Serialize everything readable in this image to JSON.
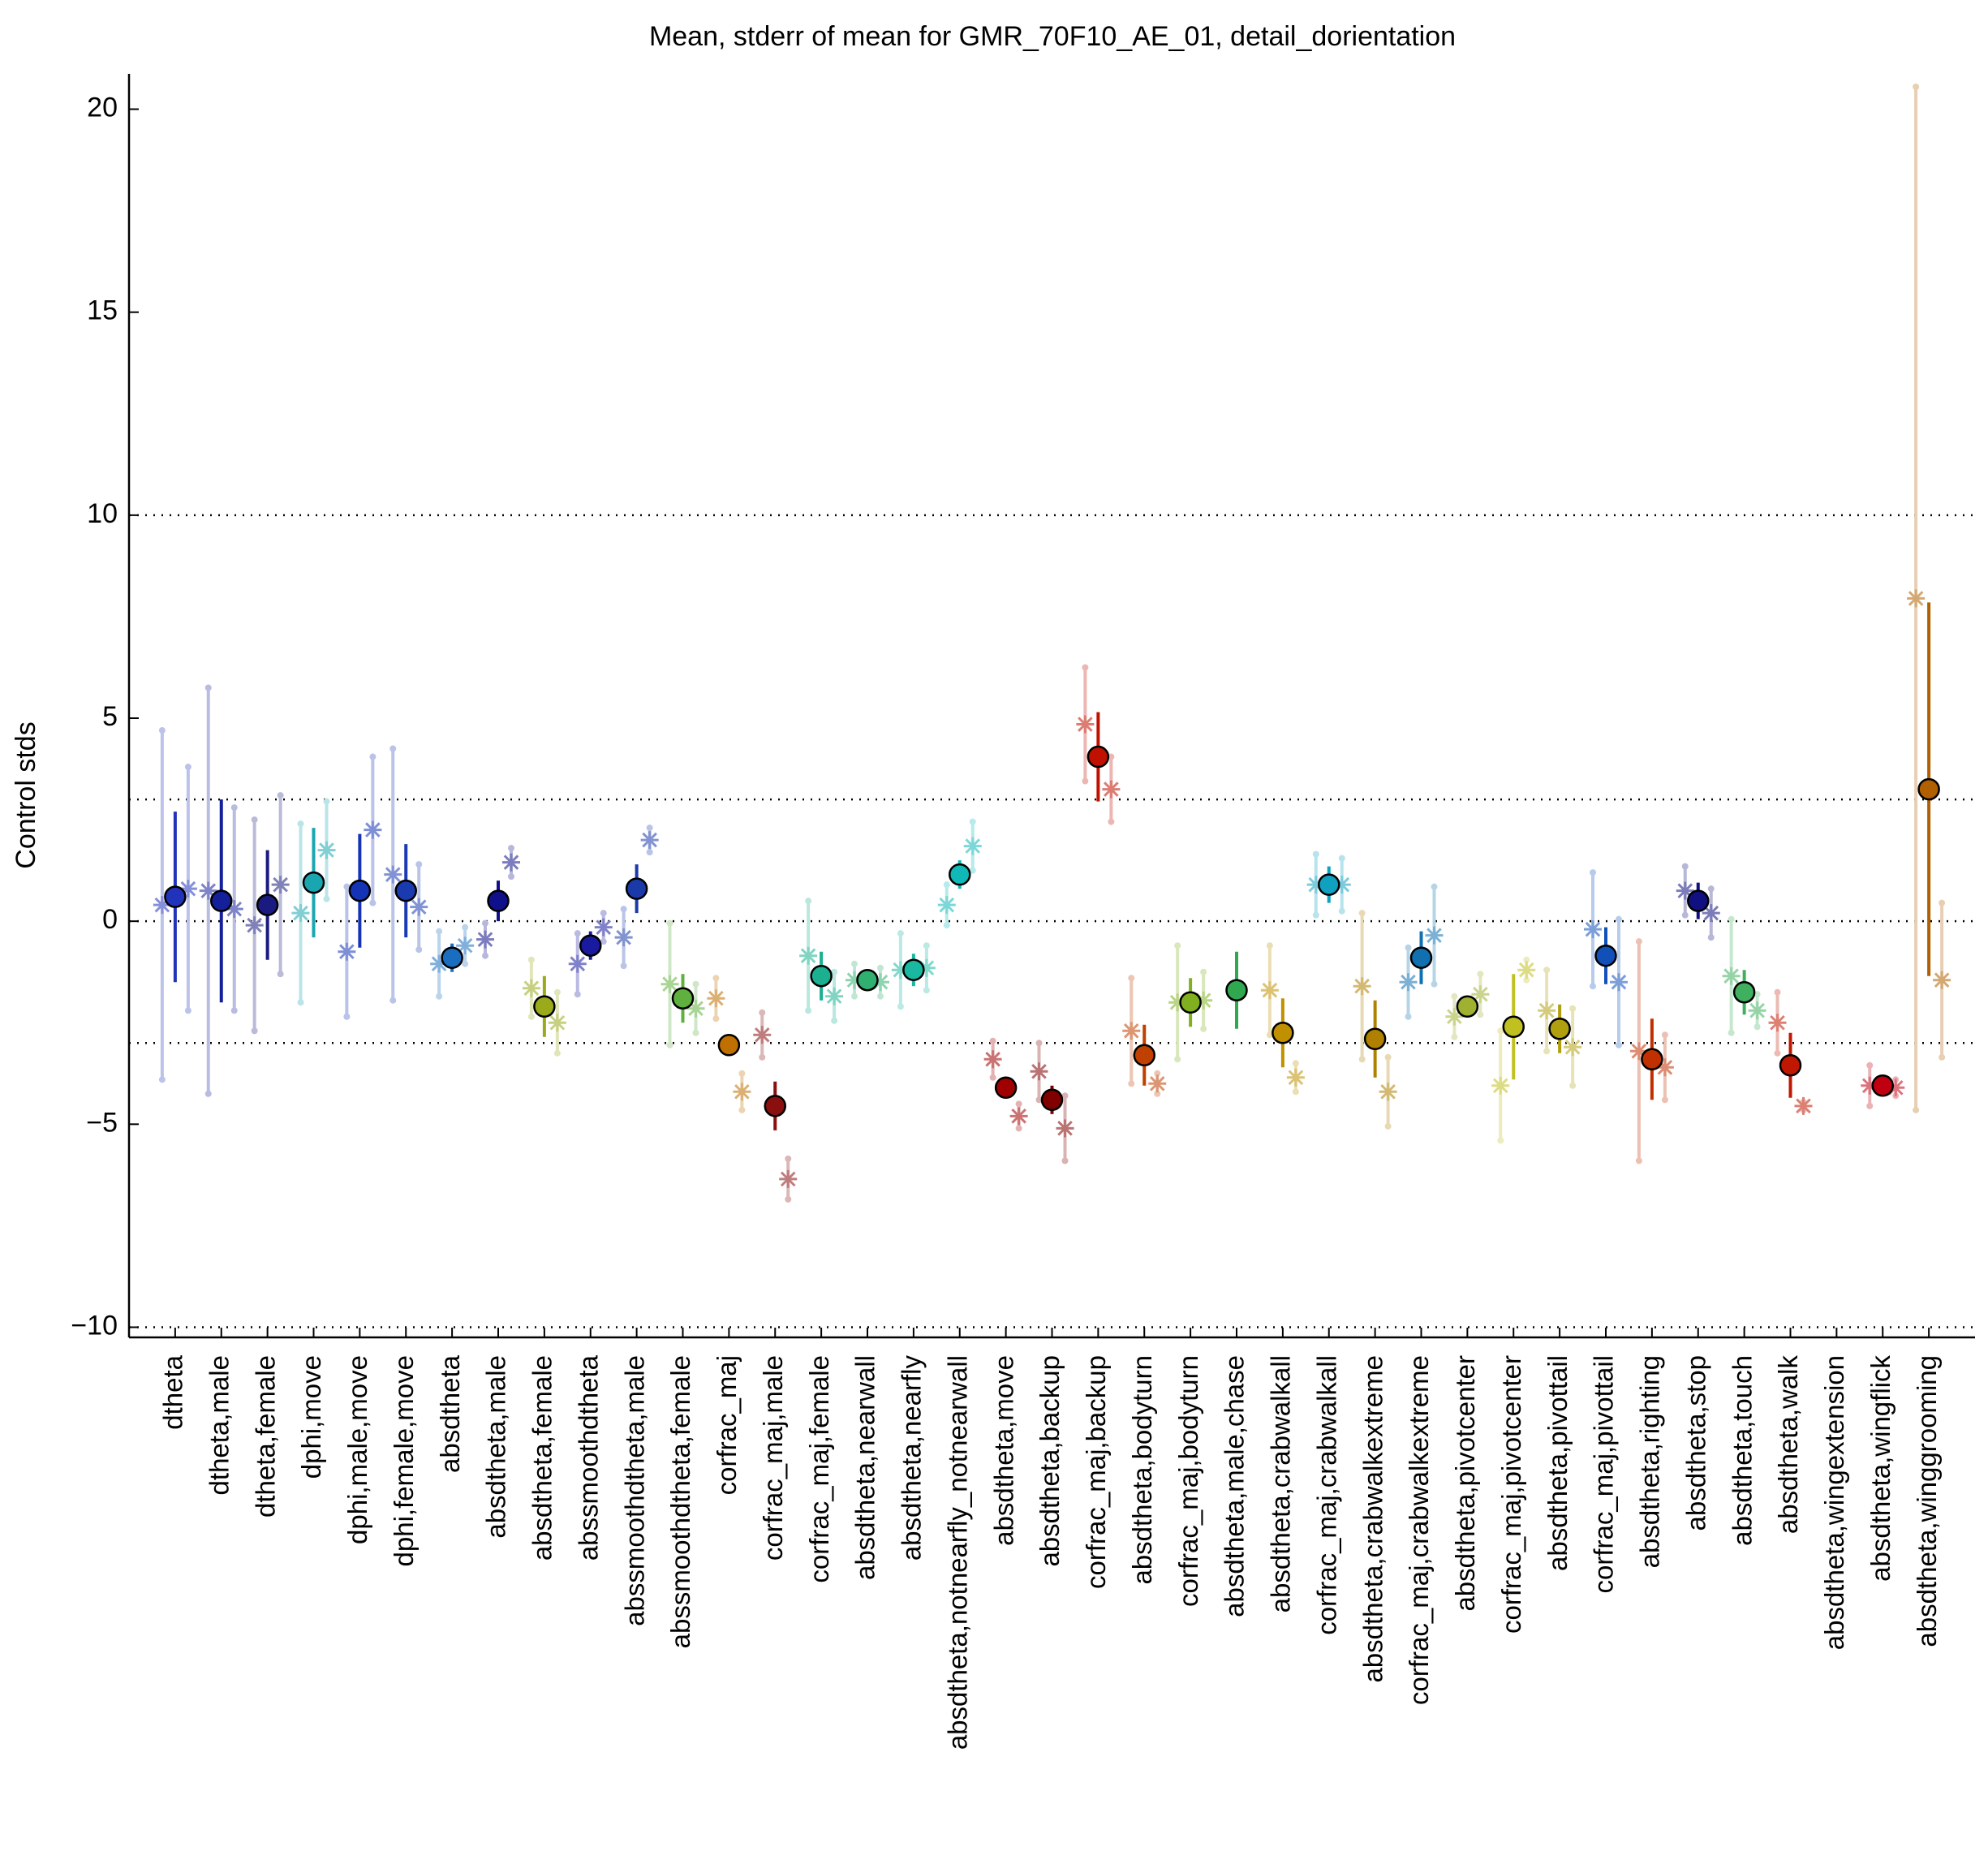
{
  "chart_data": {
    "type": "errorbar",
    "title": "Mean, stderr of mean for GMR_70F10_AE_01, detail_dorientation",
    "y_label": "Control stds",
    "ylim": [
      -10.25,
      20.87
    ],
    "yticks": [
      {
        "value": -10,
        "label": "−10"
      },
      {
        "value": -5,
        "label": "−5"
      },
      0,
      5,
      10,
      15,
      20
    ],
    "hlines": [
      -10,
      -3,
      0,
      3,
      10
    ],
    "categories": [
      "dtheta",
      "dtheta,male",
      "dtheta,female",
      "dphi,move",
      "dphi,male,move",
      "dphi,female,move",
      "absdtheta",
      "absdtheta,male",
      "absdtheta,female",
      "abssmoothdtheta",
      "abssmoothdtheta,male",
      "abssmoothdtheta,female",
      "corfrac_maj",
      "corfrac_maj,male",
      "corfrac_maj,female",
      "absdtheta,nearwall",
      "absdtheta,nearfly",
      "absdtheta,notnearfly_notnearwall",
      "absdtheta,move",
      "absdtheta,backup",
      "corfrac_maj,backup",
      "absdtheta,bodyturn",
      "corfrac_maj,bodyturn",
      "absdtheta,male,chase",
      "absdtheta,crabwalkall",
      "corfrac_maj,crabwalkall",
      "absdtheta,crabwalkextreme",
      "corfrac_maj,crabwalkextreme",
      "absdtheta,pivotcenter",
      "corfrac_maj,pivotcenter",
      "absdtheta,pivottail",
      "corfrac_maj,pivottail",
      "absdtheta,righting",
      "absdtheta,stop",
      "absdtheta,touch",
      "absdtheta,walk",
      "absdtheta,wingextension",
      "absdtheta,wingflick",
      "absdtheta,winggrooming"
    ],
    "colors": [
      "#2233bb",
      "#141f9a",
      "#1a1a80",
      "#1aa6b0",
      "#1533b5",
      "#1a3ab0",
      "#1a6ec0",
      "#10108a",
      "#9aaa1a",
      "#1a1aa0",
      "#1a3aaa",
      "#60b040",
      "#c07000",
      "#8a1010",
      "#1ab090",
      "#30b070",
      "#1ab8a0",
      "#10b8b8",
      "#a00000",
      "#800000",
      "#c01000",
      "#c04000",
      "#80b020",
      "#30a850",
      "#c09000",
      "#10a0c0",
      "#b08000",
      "#1070b0",
      "#a0b030",
      "#c0c020",
      "#b0a010",
      "#1050b8",
      "#c03000",
      "#101080",
      "#40b060",
      "#c01800",
      "#909090",
      "#c00010",
      "#b06000"
    ],
    "values": [
      0.6,
      0.5,
      0.4,
      0.95,
      0.75,
      0.75,
      -0.9,
      0.5,
      -2.1,
      -0.6,
      0.8,
      -1.9,
      -3.05,
      -4.55,
      -1.35,
      -1.45,
      -1.2,
      1.15,
      -4.1,
      -4.4,
      4.05,
      -3.3,
      -2.0,
      -1.7,
      -2.75,
      0.9,
      -2.9,
      -0.9,
      -2.1,
      -2.6,
      -2.65,
      -0.85,
      -3.4,
      0.5,
      -1.75,
      -3.55,
      null,
      -4.05,
      3.25
    ],
    "errors": [
      2.1,
      2.5,
      1.35,
      1.35,
      1.4,
      1.15,
      0.35,
      0.5,
      0.75,
      0.35,
      0.6,
      0.6,
      0.1,
      0.6,
      0.6,
      0.2,
      0.4,
      0.35,
      0.2,
      0.35,
      1.1,
      0.75,
      0.6,
      0.95,
      0.85,
      0.45,
      0.95,
      0.65,
      0.2,
      1.3,
      0.6,
      0.7,
      1.0,
      0.45,
      0.55,
      0.8,
      null,
      0.1,
      4.6
    ],
    "left_values": [
      0.4,
      0.75,
      -0.1,
      0.2,
      -0.75,
      1.15,
      -1.05,
      -0.45,
      -1.65,
      -1.05,
      -0.4,
      -1.55,
      -1.9,
      -2.8,
      -0.85,
      -1.45,
      -1.2,
      0.4,
      -3.4,
      -3.7,
      4.85,
      -2.7,
      -2.0,
      null,
      -1.7,
      0.9,
      -1.6,
      -1.5,
      -2.35,
      -4.05,
      -2.2,
      -0.2,
      -3.2,
      0.75,
      -1.35,
      -2.5,
      null,
      -4.05,
      7.95
    ],
    "left_errors": [
      4.3,
      5.0,
      2.6,
      2.2,
      1.6,
      3.1,
      0.8,
      0.4,
      0.7,
      0.75,
      0.7,
      1.5,
      0.5,
      0.55,
      1.35,
      0.4,
      0.9,
      0.5,
      0.45,
      0.7,
      1.4,
      1.3,
      1.4,
      null,
      1.1,
      0.75,
      1.8,
      0.85,
      0.5,
      1.35,
      1.0,
      1.4,
      2.7,
      0.6,
      1.4,
      0.75,
      null,
      0.5,
      12.6
    ],
    "right_values": [
      0.8,
      0.3,
      0.9,
      1.75,
      2.25,
      0.35,
      -0.6,
      1.45,
      -2.5,
      -0.15,
      2.0,
      -2.15,
      -4.2,
      -6.35,
      -1.85,
      -1.5,
      -1.15,
      1.85,
      -4.8,
      -5.1,
      3.25,
      -4.0,
      -1.95,
      null,
      -3.85,
      0.9,
      -4.2,
      -0.35,
      -1.8,
      -1.2,
      -3.1,
      -1.5,
      -3.6,
      0.2,
      -2.2,
      -4.55,
      null,
      -4.1,
      -1.45
    ],
    "right_errors": [
      3.0,
      2.5,
      2.2,
      1.2,
      1.8,
      1.05,
      0.45,
      0.35,
      0.75,
      0.35,
      0.3,
      0.6,
      0.45,
      0.5,
      0.6,
      0.35,
      0.55,
      0.6,
      0.3,
      0.8,
      0.8,
      0.25,
      0.7,
      null,
      0.35,
      0.65,
      0.85,
      1.2,
      0.5,
      0.25,
      0.95,
      1.55,
      0.8,
      0.6,
      0.4,
      0.1,
      null,
      0.2,
      1.9
    ]
  }
}
